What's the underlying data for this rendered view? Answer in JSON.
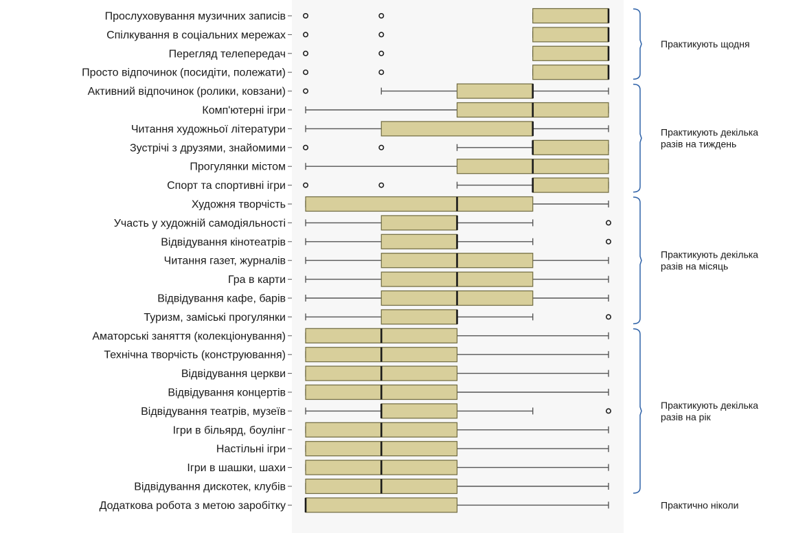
{
  "chart_data": {
    "type": "boxplot",
    "orientation": "horizontal",
    "title": "",
    "xlabel": "",
    "ylabel": "",
    "xlim": [
      1,
      5
    ],
    "scale_note": "ordinal frequency scale; higher = more frequent",
    "categories": [
      {
        "label": "Прослуховування музичних записів",
        "min": 4,
        "q1": 4,
        "median": 5,
        "q3": 5,
        "max": 5,
        "outliers": [
          1,
          2
        ]
      },
      {
        "label": "Спілкування в соціальних мережах",
        "min": 4,
        "q1": 4,
        "median": 5,
        "q3": 5,
        "max": 5,
        "outliers": [
          1,
          2
        ]
      },
      {
        "label": "Перегляд телепередач",
        "min": 4,
        "q1": 4,
        "median": 5,
        "q3": 5,
        "max": 5,
        "outliers": [
          1,
          2
        ]
      },
      {
        "label": "Просто відпочинок (посидіти, полежати)",
        "min": 4,
        "q1": 4,
        "median": 5,
        "q3": 5,
        "max": 5,
        "outliers": [
          1,
          2
        ]
      },
      {
        "label": "Активний відпочинок (ролики, ковзани)",
        "min": 2,
        "q1": 3,
        "median": 4,
        "q3": 4,
        "max": 5,
        "outliers": [
          1
        ]
      },
      {
        "label": "Комп'ютерні ігри",
        "min": 1,
        "q1": 3,
        "median": 4,
        "q3": 5,
        "max": 5,
        "outliers": []
      },
      {
        "label": "Читання художньої літератури",
        "min": 1,
        "q1": 2,
        "median": 4,
        "q3": 4,
        "max": 5,
        "outliers": []
      },
      {
        "label": "Зустрічі з друзями, знайомими",
        "min": 3,
        "q1": 4,
        "median": 4,
        "q3": 5,
        "max": 5,
        "outliers": [
          1,
          2
        ]
      },
      {
        "label": "Прогулянки містом",
        "min": 1,
        "q1": 3,
        "median": 4,
        "q3": 5,
        "max": 5,
        "outliers": []
      },
      {
        "label": "Спорт та спортивні ігри",
        "min": 3,
        "q1": 4,
        "median": 4,
        "q3": 5,
        "max": 5,
        "outliers": [
          1,
          2
        ]
      },
      {
        "label": "Художня творчість",
        "min": 1,
        "q1": 1,
        "median": 3,
        "q3": 4,
        "max": 5,
        "outliers": []
      },
      {
        "label": "Участь у художній самодіяльності",
        "min": 1,
        "q1": 2,
        "median": 3,
        "q3": 3,
        "max": 4,
        "outliers": [
          5
        ]
      },
      {
        "label": "Відвідування кінотеатрів",
        "min": 1,
        "q1": 2,
        "median": 3,
        "q3": 3,
        "max": 4,
        "outliers": [
          5
        ]
      },
      {
        "label": "Читання газет, журналів",
        "min": 1,
        "q1": 2,
        "median": 3,
        "q3": 4,
        "max": 5,
        "outliers": []
      },
      {
        "label": "Гра в карти",
        "min": 1,
        "q1": 2,
        "median": 3,
        "q3": 4,
        "max": 5,
        "outliers": []
      },
      {
        "label": "Відвідування кафе, барів",
        "min": 1,
        "q1": 2,
        "median": 3,
        "q3": 4,
        "max": 5,
        "outliers": []
      },
      {
        "label": "Туризм, заміські прогулянки",
        "min": 1,
        "q1": 2,
        "median": 3,
        "q3": 3,
        "max": 4,
        "outliers": [
          5
        ]
      },
      {
        "label": "Аматорські заняття (колекціонування)",
        "min": 1,
        "q1": 1,
        "median": 2,
        "q3": 3,
        "max": 5,
        "outliers": []
      },
      {
        "label": "Технічна творчість (конструювання)",
        "min": 1,
        "q1": 1,
        "median": 2,
        "q3": 3,
        "max": 5,
        "outliers": []
      },
      {
        "label": "Відвідування церкви",
        "min": 1,
        "q1": 1,
        "median": 2,
        "q3": 3,
        "max": 5,
        "outliers": []
      },
      {
        "label": "Відвідування концертів",
        "min": 1,
        "q1": 1,
        "median": 2,
        "q3": 3,
        "max": 5,
        "outliers": []
      },
      {
        "label": "Відвідування театрів, музеїв",
        "min": 1,
        "q1": 2,
        "median": 2,
        "q3": 3,
        "max": 4,
        "outliers": [
          5
        ]
      },
      {
        "label": "Ігри в більярд, боулінг",
        "min": 1,
        "q1": 1,
        "median": 2,
        "q3": 3,
        "max": 5,
        "outliers": []
      },
      {
        "label": "Настільні ігри",
        "min": 1,
        "q1": 1,
        "median": 2,
        "q3": 3,
        "max": 5,
        "outliers": []
      },
      {
        "label": "Ігри в шашки, шахи",
        "min": 1,
        "q1": 1,
        "median": 2,
        "q3": 3,
        "max": 5,
        "outliers": []
      },
      {
        "label": "Відвідування дискотек, клубів",
        "min": 1,
        "q1": 1,
        "median": 2,
        "q3": 3,
        "max": 5,
        "outliers": []
      },
      {
        "label": "Додаткова робота з метою заробітку",
        "min": 1,
        "q1": 1,
        "median": 1,
        "q3": 3,
        "max": 5,
        "outliers": []
      }
    ],
    "groups": [
      {
        "label": "Практикують щодня",
        "from": 0,
        "to": 3
      },
      {
        "label": "Практикують декілька разів на тиждень",
        "lines": [
          "Практикують декілька",
          "разів на тиждень"
        ],
        "from": 4,
        "to": 9
      },
      {
        "label": "Практикують декілька разів на місяць",
        "lines": [
          "Практикують декілька",
          "разів на місяць"
        ],
        "from": 10,
        "to": 16
      },
      {
        "label": "Практикують декілька разів на рік",
        "lines": [
          "Практикують декілька",
          "разів на рік"
        ],
        "from": 17,
        "to": 25
      },
      {
        "label": "Практично ніколи",
        "from": 26,
        "to": 26
      }
    ],
    "colors": {
      "box_fill": "#d8cf9b",
      "box_stroke": "#6f6a3f",
      "median": "#1a1a1a",
      "whisker": "#555555",
      "bracket": "#2e62a8",
      "plot_bg": "#f7f7f7"
    }
  }
}
